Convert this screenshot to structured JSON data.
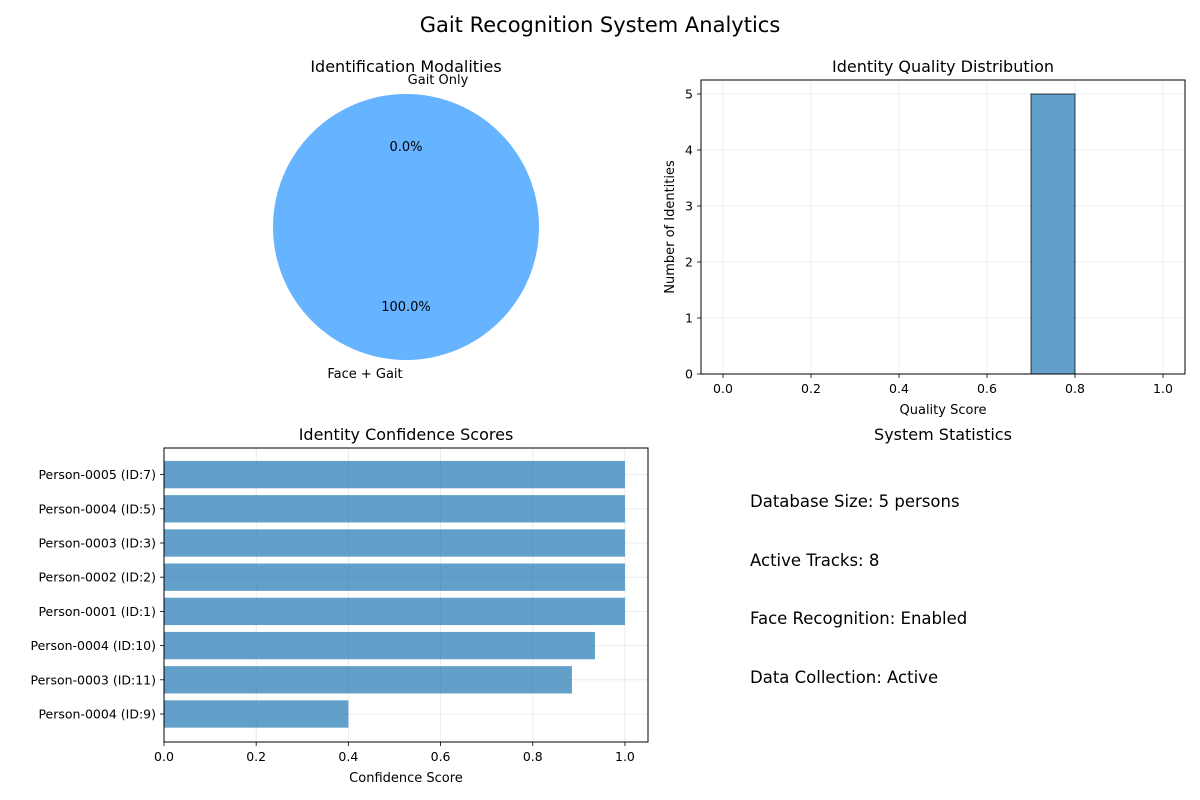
{
  "figure": {
    "title": "Gait Recognition System Analytics"
  },
  "colors": {
    "pie_main": "#66b3ff",
    "bar_fill": "#1f77b4",
    "bar_alpha": 0.7,
    "grid": "#b0b0b0",
    "axis": "#000000"
  },
  "chart_data": [
    {
      "type": "pie",
      "title": "Identification Modalities",
      "labels": [
        "Gait Only",
        "Face + Gait"
      ],
      "values": [
        0,
        100
      ],
      "pct_labels": [
        "0.0%",
        "100.0%"
      ],
      "colors": [
        "#ff9999",
        "#66b3ff"
      ]
    },
    {
      "type": "bar",
      "subtype": "histogram",
      "title": "Identity Quality Distribution",
      "xlabel": "Quality Score",
      "ylabel": "Number of Identities",
      "bins": [
        [
          0.7,
          0.8
        ]
      ],
      "counts": [
        5
      ],
      "xlim": [
        -0.05,
        1.05
      ],
      "ylim": [
        0,
        5.25
      ],
      "xticks": [
        0.0,
        0.2,
        0.4,
        0.6,
        0.8,
        1.0
      ],
      "xtick_labels": [
        "0.0",
        "0.2",
        "0.4",
        "0.6",
        "0.8",
        "1.0"
      ],
      "yticks": [
        0,
        1,
        2,
        3,
        4,
        5
      ],
      "ytick_labels": [
        "0",
        "1",
        "2",
        "3",
        "4",
        "5"
      ],
      "grid": true
    },
    {
      "type": "bar",
      "orientation": "horizontal",
      "title": "Identity Confidence Scores",
      "xlabel": "Confidence Score",
      "categories": [
        "Person-0005 (ID:7)",
        "Person-0004 (ID:5)",
        "Person-0003 (ID:3)",
        "Person-0002 (ID:2)",
        "Person-0001 (ID:1)",
        "Person-0004 (ID:10)",
        "Person-0003 (ID:11)",
        "Person-0004 (ID:9)"
      ],
      "values": [
        1.0,
        1.0,
        1.0,
        1.0,
        1.0,
        0.935,
        0.885,
        0.4
      ],
      "xlim": [
        0,
        1.05
      ],
      "xticks": [
        0.0,
        0.2,
        0.4,
        0.6,
        0.8,
        1.0
      ],
      "xtick_labels": [
        "0.0",
        "0.2",
        "0.4",
        "0.6",
        "0.8",
        "1.0"
      ],
      "grid": true
    }
  ],
  "stats_panel": {
    "title": "System Statistics",
    "lines": [
      "Database Size: 5 persons",
      "Active Tracks: 8",
      "Face Recognition: Enabled",
      "Data Collection: Active"
    ]
  }
}
